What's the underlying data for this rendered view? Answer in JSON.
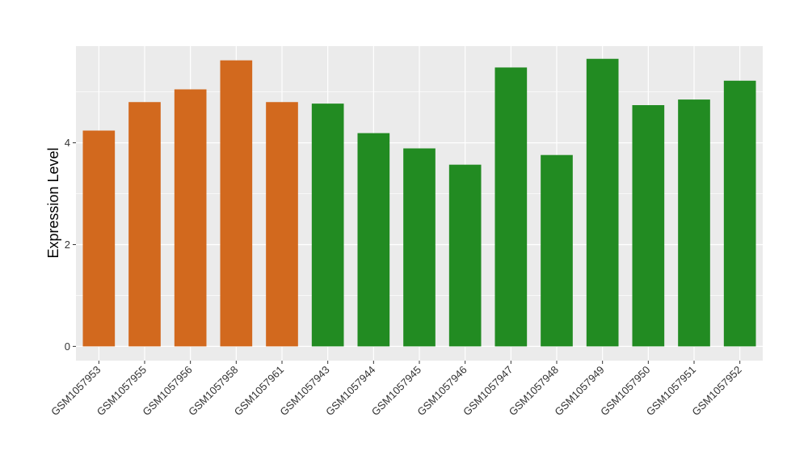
{
  "chart_data": {
    "type": "bar",
    "title": "",
    "xlabel": "",
    "ylabel": "Expression Level",
    "ylim": [
      -0.28,
      5.9
    ],
    "yticks": [
      0,
      2,
      4
    ],
    "grid": true,
    "legend": "none",
    "colors": {
      "group_a": "#d2691e",
      "group_b": "#228b22",
      "panel_bg": "#ebebeb",
      "grid": "#ffffff"
    },
    "categories": [
      "GSM1057953",
      "GSM1057955",
      "GSM1057956",
      "GSM1057958",
      "GSM1057961",
      "GSM1057943",
      "GSM1057944",
      "GSM1057945",
      "GSM1057946",
      "GSM1057947",
      "GSM1057948",
      "GSM1057949",
      "GSM1057950",
      "GSM1057951",
      "GSM1057952"
    ],
    "values": [
      4.24,
      4.8,
      5.05,
      5.62,
      4.8,
      4.77,
      4.19,
      3.89,
      3.57,
      5.48,
      3.76,
      5.65,
      4.74,
      4.85,
      5.22
    ],
    "groups": [
      "a",
      "a",
      "a",
      "a",
      "a",
      "b",
      "b",
      "b",
      "b",
      "b",
      "b",
      "b",
      "b",
      "b",
      "b"
    ]
  }
}
